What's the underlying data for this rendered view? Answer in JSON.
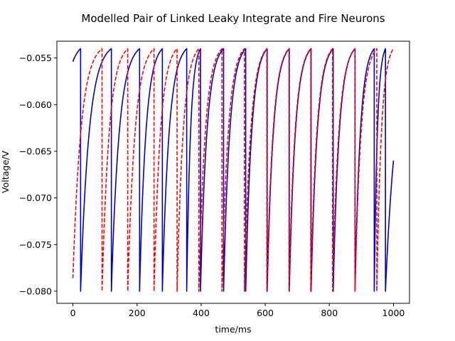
{
  "chart_data": {
    "type": "line",
    "title": "Modelled Pair of Linked Leaky Integrate and Fire Neurons",
    "xlabel": "time/ms",
    "ylabel": "Voltage/V",
    "xlim": [
      -50,
      1050
    ],
    "ylim": [
      -0.0813,
      -0.0532
    ],
    "x_ticks": [
      0,
      200,
      400,
      600,
      800,
      1000
    ],
    "x_tick_labels": [
      "0",
      "200",
      "400",
      "600",
      "800",
      "1000"
    ],
    "y_ticks": [
      -0.08,
      -0.075,
      -0.07,
      -0.065,
      -0.06,
      -0.055
    ],
    "y_tick_labels": [
      "−0.080",
      "−0.075",
      "−0.070",
      "−0.065",
      "−0.060",
      "−0.055"
    ],
    "grid": false,
    "legend": "none",
    "model": {
      "v_reset": -0.08,
      "v_threshold": -0.054,
      "v_inf": -0.0533,
      "tau_ms": 20
    },
    "series": [
      {
        "color": "#0000cc",
        "style": "solid",
        "v_start": -0.0554,
        "t_end": 1000,
        "v_end": -0.066,
        "spike_times": [
          24,
          120,
          208,
          279,
          355,
          398,
          470,
          539,
          606,
          675,
          743,
          812,
          880,
          940,
          975
        ]
      },
      {
        "color": "#ff0000",
        "style": "dashed",
        "v_start": -0.0786,
        "t_end": 1000,
        "v_end": -0.057,
        "spike_times": [
          91,
          171,
          253,
          325,
          393,
          465,
          535,
          605,
          674,
          742,
          810,
          880,
          948,
          1000
        ]
      }
    ]
  }
}
